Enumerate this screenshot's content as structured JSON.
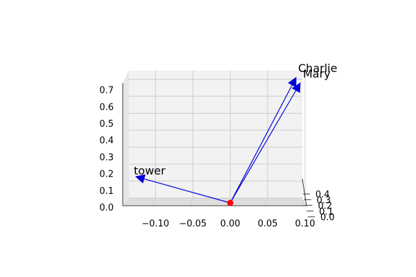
{
  "chart_data": {
    "type": "scatter",
    "projection": "3d",
    "title": "",
    "xlabel": "",
    "ylabel": "",
    "zlabel": "",
    "grid": true,
    "xlim": [
      -0.14,
      0.1
    ],
    "ylim": [
      0.0,
      0.45
    ],
    "zlim": [
      0.0,
      0.75
    ],
    "x_ticks": [
      {
        "value": -0.1,
        "label": "−0.10"
      },
      {
        "value": -0.05,
        "label": "−0.05"
      },
      {
        "value": 0.0,
        "label": "0.00"
      },
      {
        "value": 0.05,
        "label": "0.05"
      },
      {
        "value": 0.1,
        "label": "0.10"
      }
    ],
    "y_ticks": [
      {
        "value": 0.0,
        "label": "0.0"
      },
      {
        "value": 0.1,
        "label": "0.1"
      },
      {
        "value": 0.2,
        "label": "0.2"
      },
      {
        "value": 0.3,
        "label": "0.3"
      },
      {
        "value": 0.4,
        "label": "0.4"
      }
    ],
    "z_ticks": [
      {
        "value": 0.0,
        "label": "0.0"
      },
      {
        "value": 0.1,
        "label": "0.1"
      },
      {
        "value": 0.2,
        "label": "0.2"
      },
      {
        "value": 0.3,
        "label": "0.3"
      },
      {
        "value": 0.4,
        "label": "0.4"
      },
      {
        "value": 0.5,
        "label": "0.5"
      },
      {
        "value": 0.6,
        "label": "0.6"
      },
      {
        "value": 0.7,
        "label": "0.7"
      }
    ],
    "origin": {
      "x": 0.0,
      "y": 0.0,
      "z": 0.0,
      "color": "#ff0000"
    },
    "vectors": [
      {
        "label": "Charlie",
        "x": 0.087,
        "y": 0.2,
        "z": 0.77
      },
      {
        "label": "Mary",
        "x": 0.095,
        "y": 0.2,
        "z": 0.72
      },
      {
        "label": "tower",
        "x": -0.12,
        "y": 0.1,
        "z": 0.14
      }
    ],
    "vector_color": "#0000dd",
    "pane_color": "#f2f2f2",
    "grid_color": "#cccccc"
  }
}
